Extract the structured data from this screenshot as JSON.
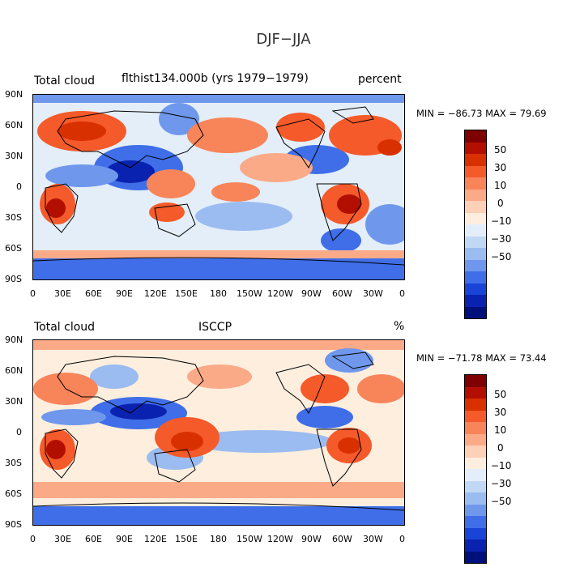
{
  "main_title": "DJF−JJA",
  "panels": [
    {
      "left_title": "Total cloud",
      "center_title": "flthist134.000b (yrs 1979−1979)",
      "right_title": "percent",
      "min_max": "MIN = −86.73 MAX =  79.69"
    },
    {
      "left_title": "Total cloud",
      "center_title": "ISCCP",
      "right_title": "%",
      "min_max": "MIN = −71.78 MAX =  73.44"
    }
  ],
  "lat_labels": [
    "90N",
    "60N",
    "30N",
    "0",
    "30S",
    "60S",
    "90S"
  ],
  "lon_labels": [
    "0",
    "30E",
    "60E",
    "90E",
    "120E",
    "150E",
    "180",
    "150W",
    "120W",
    "90W",
    "60W",
    "30W",
    "0"
  ],
  "colorbar_labels": [
    "50",
    "30",
    "10",
    "0",
    "−10",
    "−30",
    "−50"
  ],
  "colorbar_colors": [
    "#7f0000",
    "#b30f00",
    "#d93000",
    "#f55a2a",
    "#f8845a",
    "#fbaa88",
    "#fdd0b8",
    "#fdeede",
    "#e3eefa",
    "#c0d8f4",
    "#9bbcf0",
    "#6f98ec",
    "#3f6ee8",
    "#1a44d8",
    "#0a22b0",
    "#00107a"
  ]
}
